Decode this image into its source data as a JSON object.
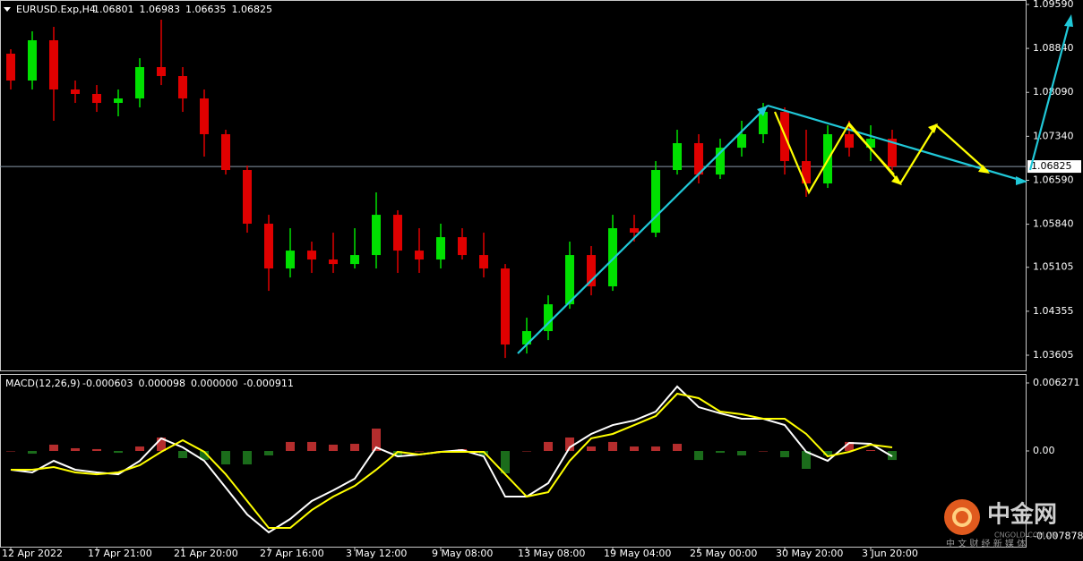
{
  "chart_data": [
    {
      "type": "candlestick",
      "title": "EURUSD.Exp,H4",
      "header_values": [
        1.06801,
        1.06983,
        1.06635,
        1.06825
      ],
      "categories": [
        "12 Apr 2022",
        null,
        null,
        null,
        "17 Apr 21:00",
        null,
        null,
        null,
        "21 Apr 20:00",
        null,
        null,
        null,
        "27 Apr 16:00",
        null,
        null,
        null,
        "3 May 12:00",
        null,
        null,
        null,
        "9 May 08:00",
        null,
        null,
        null,
        "13 May 08:00",
        null,
        null,
        null,
        "19 May 04:00",
        null,
        null,
        null,
        "25 May 00:00",
        null,
        null,
        null,
        "30 May 20:00",
        null,
        null,
        null,
        "3 Jun 20:00",
        null
      ],
      "open": [
        1.0875,
        1.08292,
        1.08979,
        1.08139,
        1.08063,
        1.0791,
        1.07986,
        1.08521,
        1.08368,
        1.07986,
        1.07376,
        1.06765,
        1.05849,
        1.05085,
        1.0539,
        1.05238,
        1.05161,
        1.05314,
        1.06001,
        1.0539,
        1.05238,
        1.05619,
        1.05314,
        1.05085,
        1.03787,
        1.04016,
        1.04474,
        1.05314,
        1.0478,
        1.05772,
        1.05696,
        1.06765,
        1.07223,
        1.06688,
        1.07146,
        1.07376,
        1.07757,
        1.06917,
        1.06536,
        1.07376,
        1.07146,
        1.07299
      ],
      "high": [
        1.08826,
        1.09132,
        1.09208,
        1.08292,
        1.08215,
        1.08139,
        1.08673,
        1.0933,
        1.08521,
        1.08139,
        1.07452,
        1.06841,
        1.06001,
        1.05772,
        1.05543,
        1.05696,
        1.05772,
        1.06383,
        1.06078,
        1.05772,
        1.05849,
        1.05772,
        1.05696,
        1.05161,
        1.04245,
        1.04627,
        1.05543,
        1.05467,
        1.06001,
        1.06001,
        1.06917,
        1.07452,
        1.07376,
        1.07299,
        1.07605,
        1.0791,
        1.07834,
        1.07452,
        1.07528,
        1.07605,
        1.07528,
        1.07452
      ],
      "low": [
        1.08139,
        1.08139,
        1.07605,
        1.0791,
        1.07757,
        1.07681,
        1.07834,
        1.08215,
        1.07757,
        1.06994,
        1.06688,
        1.05696,
        1.04703,
        1.04932,
        1.05009,
        1.05009,
        1.05085,
        1.05085,
        1.05009,
        1.05009,
        1.05085,
        1.05238,
        1.04932,
        1.03558,
        1.03634,
        1.03863,
        1.04398,
        1.04627,
        1.04703,
        1.05543,
        1.05619,
        1.06688,
        1.06536,
        1.06612,
        1.06994,
        1.07223,
        1.06688,
        1.06307,
        1.06459,
        1.06994,
        1.06917,
        1.06765
      ],
      "close": [
        1.08292,
        1.08979,
        1.08139,
        1.08063,
        1.0791,
        1.07986,
        1.08521,
        1.08368,
        1.07986,
        1.07376,
        1.06765,
        1.05849,
        1.05085,
        1.0539,
        1.05238,
        1.05161,
        1.05314,
        1.06001,
        1.0539,
        1.05238,
        1.05619,
        1.05314,
        1.05085,
        1.03787,
        1.04016,
        1.04474,
        1.05314,
        1.0478,
        1.05772,
        1.05696,
        1.06765,
        1.07223,
        1.06688,
        1.07146,
        1.07376,
        1.07757,
        1.06917,
        1.06536,
        1.07376,
        1.07146,
        1.07299,
        1.06825
      ],
      "up_color": "#00e000",
      "down_color": "#e00000",
      "last_price": 1.06825,
      "ylim": [
        1.0333,
        1.09666
      ],
      "yticks": [
        {
          "value": 1.0959,
          "label": "1.09590"
        },
        {
          "value": 1.0884,
          "label": "1.08840"
        },
        {
          "value": 1.0809,
          "label": "1.08090"
        },
        {
          "value": 1.0734,
          "label": "1.07340"
        },
        {
          "value": 1.0659,
          "label": "1.06590"
        },
        {
          "value": 1.0584,
          "label": "1.05840"
        },
        1.05105,
        1.04355,
        1.03605
      ]
    },
    {
      "type": "macd",
      "title": "MACD(12,26,9)",
      "header_values": [
        -0.000603,
        9.8e-05,
        {
          "value": 0,
          "label": "0.000000"
        },
        -0.000911
      ],
      "histogram": {
        "up_color": "#c83232",
        "down_color": "#1e781e",
        "values": [
          0,
          -0.00025,
          0.00058,
          0.00025,
          0.00017,
          -0.00017,
          0.00041,
          0.00124,
          -0.00066,
          -0.00083,
          -0.00124,
          -0.00124,
          -0.00041,
          0.00083,
          0.00083,
          0.00058,
          0.00066,
          0.00206,
          -0.00041,
          0,
          0,
          0.00017,
          -0.00041,
          -0.00206,
          0,
          0.00083,
          0.00124,
          0.00041,
          0.00083,
          0.00041,
          0.00041,
          0.00066,
          -0.00083,
          -0.00017,
          -0.00041,
          0,
          -0.00058,
          -0.00165,
          -0.00041,
          0.00083,
          8e-05,
          -0.00083
        ]
      },
      "series": [
        {
          "color": "#ffffff",
          "values": [
            -0.00173,
            -0.00198,
            -0.00091,
            -0.00173,
            -0.00198,
            -0.00215,
            -0.00091,
            0.00116,
            0.00033,
            -0.00091,
            -0.00338,
            -0.00586,
            -0.00751,
            -0.00627,
            -0.00462,
            -0.00363,
            -0.00256,
            0.00033,
            -0.0005,
            -0.00033,
            -8e-05,
            8e-05,
            -0.0005,
            -0.00421,
            -0.00421,
            -0.00297,
            0.00033,
            0.00157,
            0.00239,
            0.00281,
            0.00363,
            0.00594,
            0.00404,
            0.00347,
            0.00297,
            0.00297,
            0.00239,
            -8e-05,
            -0.00091,
            0.00074,
            0.00066,
            -0.0005
          ]
        },
        {
          "color": "#ffff00",
          "values": [
            -0.00173,
            -0.00173,
            -0.00149,
            -0.00198,
            -0.00215,
            -0.00198,
            -0.00132,
            -8e-05,
            0.00099,
            -8e-05,
            -0.00215,
            -0.00462,
            -0.0071,
            -0.0071,
            -0.00545,
            -0.00421,
            -0.00322,
            -0.00173,
            -8e-05,
            -0.00033,
            -8e-05,
            -8e-05,
            -8e-05,
            -0.00215,
            -0.00421,
            -0.0038,
            -0.00091,
            0.00116,
            0.00157,
            0.00239,
            0.00322,
            0.00528,
            0.00487,
            0.00363,
            0.00338,
            0.00297,
            0.00297,
            0.00157,
            -0.0005,
            -8e-05,
            0.00058,
            0.00033
          ]
        }
      ],
      "ylim": [
        -0.00891,
        0.007096
      ],
      "yticks": [
        0.006271,
        {
          "value": 0,
          "label": "0.00"
        },
        -0.007878
      ]
    },
    {
      "watermark": "中金网",
      "watermark_sub": "CNGOLD.COM.CN",
      "watermark_tag": "中 文 财 经 新 媒 体"
    }
  ]
}
